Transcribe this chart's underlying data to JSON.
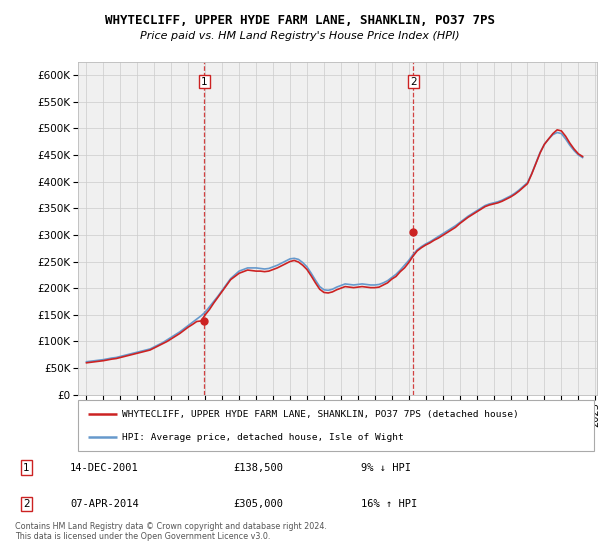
{
  "title": "WHYTECLIFF, UPPER HYDE FARM LANE, SHANKLIN, PO37 7PS",
  "subtitle": "Price paid vs. HM Land Registry's House Price Index (HPI)",
  "legend_line1": "WHYTECLIFF, UPPER HYDE FARM LANE, SHANKLIN, PO37 7PS (detached house)",
  "legend_line2": "HPI: Average price, detached house, Isle of Wight",
  "annotation1_label": "1",
  "annotation1_date": "14-DEC-2001",
  "annotation1_price": "£138,500",
  "annotation1_hpi": "9% ↓ HPI",
  "annotation2_label": "2",
  "annotation2_date": "07-APR-2014",
  "annotation2_price": "£305,000",
  "annotation2_hpi": "16% ↑ HPI",
  "footer": "Contains HM Land Registry data © Crown copyright and database right 2024.\nThis data is licensed under the Open Government Licence v3.0.",
  "hpi_color": "#6699cc",
  "property_color": "#cc2222",
  "vline_color": "#cc2222",
  "dot_color": "#cc2222",
  "ylim_min": 0,
  "ylim_max": 625000,
  "yticks": [
    0,
    50000,
    100000,
    150000,
    200000,
    250000,
    300000,
    350000,
    400000,
    450000,
    500000,
    550000,
    600000
  ],
  "anno1_x": 2001.95,
  "anno1_y": 138500,
  "anno2_x": 2014.27,
  "anno2_y": 305000,
  "hpi_years": [
    1995,
    1995.25,
    1995.5,
    1995.75,
    1996,
    1996.25,
    1996.5,
    1996.75,
    1997,
    1997.25,
    1997.5,
    1997.75,
    1998,
    1998.25,
    1998.5,
    1998.75,
    1999,
    1999.25,
    1999.5,
    1999.75,
    2000,
    2000.25,
    2000.5,
    2000.75,
    2001,
    2001.25,
    2001.5,
    2001.75,
    2002,
    2002.25,
    2002.5,
    2002.75,
    2003,
    2003.25,
    2003.5,
    2003.75,
    2004,
    2004.25,
    2004.5,
    2004.75,
    2005,
    2005.25,
    2005.5,
    2005.75,
    2006,
    2006.25,
    2006.5,
    2006.75,
    2007,
    2007.25,
    2007.5,
    2007.75,
    2008,
    2008.25,
    2008.5,
    2008.75,
    2009,
    2009.25,
    2009.5,
    2009.75,
    2010,
    2010.25,
    2010.5,
    2010.75,
    2011,
    2011.25,
    2011.5,
    2011.75,
    2012,
    2012.25,
    2012.5,
    2012.75,
    2013,
    2013.25,
    2013.5,
    2013.75,
    2014,
    2014.25,
    2014.5,
    2014.75,
    2015,
    2015.25,
    2015.5,
    2015.75,
    2016,
    2016.25,
    2016.5,
    2016.75,
    2017,
    2017.25,
    2017.5,
    2017.75,
    2018,
    2018.25,
    2018.5,
    2018.75,
    2019,
    2019.25,
    2019.5,
    2019.75,
    2020,
    2020.25,
    2020.5,
    2020.75,
    2021,
    2021.25,
    2021.5,
    2021.75,
    2022,
    2022.25,
    2022.5,
    2022.75,
    2023,
    2023.25,
    2023.5,
    2023.75,
    2024,
    2024.25
  ],
  "hpi_values": [
    62000,
    63000,
    64000,
    65000,
    66000,
    67500,
    69000,
    70000,
    72000,
    74000,
    76000,
    78000,
    80000,
    82000,
    84000,
    86000,
    90000,
    94000,
    98000,
    103000,
    108000,
    113000,
    118000,
    124000,
    130000,
    136000,
    142000,
    148000,
    155000,
    165000,
    175000,
    185000,
    196000,
    207000,
    218000,
    225000,
    232000,
    235000,
    238000,
    238000,
    238000,
    237000,
    236000,
    237000,
    240000,
    243000,
    247000,
    251000,
    255000,
    256000,
    254000,
    248000,
    240000,
    228000,
    215000,
    203000,
    197000,
    196000,
    198000,
    202000,
    205000,
    208000,
    207000,
    206000,
    207000,
    208000,
    207000,
    206000,
    206000,
    207000,
    210000,
    214000,
    220000,
    226000,
    234000,
    243000,
    252000,
    263000,
    272000,
    278000,
    283000,
    287000,
    292000,
    297000,
    302000,
    307000,
    312000,
    317000,
    323000,
    329000,
    335000,
    340000,
    345000,
    350000,
    355000,
    358000,
    360000,
    362000,
    365000,
    369000,
    373000,
    378000,
    384000,
    391000,
    398000,
    415000,
    435000,
    455000,
    470000,
    480000,
    488000,
    492000,
    490000,
    480000,
    468000,
    458000,
    450000,
    445000
  ],
  "prop_years": [
    1995,
    1995.25,
    1995.5,
    1995.75,
    1996,
    1996.25,
    1996.5,
    1996.75,
    1997,
    1997.25,
    1997.5,
    1997.75,
    1998,
    1998.25,
    1998.5,
    1998.75,
    1999,
    1999.25,
    1999.5,
    1999.75,
    2000,
    2000.25,
    2000.5,
    2000.75,
    2001,
    2001.25,
    2001.5,
    2001.75,
    2002,
    2002.25,
    2002.5,
    2002.75,
    2003,
    2003.25,
    2003.5,
    2003.75,
    2004,
    2004.25,
    2004.5,
    2004.75,
    2005,
    2005.25,
    2005.5,
    2005.75,
    2006,
    2006.25,
    2006.5,
    2006.75,
    2007,
    2007.25,
    2007.5,
    2007.75,
    2008,
    2008.25,
    2008.5,
    2008.75,
    2009,
    2009.25,
    2009.5,
    2009.75,
    2010,
    2010.25,
    2010.5,
    2010.75,
    2011,
    2011.25,
    2011.5,
    2011.75,
    2012,
    2012.25,
    2012.5,
    2012.75,
    2013,
    2013.25,
    2013.5,
    2013.75,
    2014,
    2014.25,
    2014.5,
    2014.75,
    2015,
    2015.25,
    2015.5,
    2015.75,
    2016,
    2016.25,
    2016.5,
    2016.75,
    2017,
    2017.25,
    2017.5,
    2017.75,
    2018,
    2018.25,
    2018.5,
    2018.75,
    2019,
    2019.25,
    2019.5,
    2019.75,
    2020,
    2020.25,
    2020.5,
    2020.75,
    2021,
    2021.25,
    2021.5,
    2021.75,
    2022,
    2022.25,
    2022.5,
    2022.75,
    2023,
    2023.25,
    2023.5,
    2023.75,
    2024,
    2024.25
  ],
  "prop_values": [
    60000,
    61000,
    62000,
    63000,
    64000,
    65500,
    67000,
    68000,
    70000,
    72000,
    74000,
    76000,
    78000,
    80000,
    82000,
    84000,
    88000,
    92000,
    96000,
    100000,
    105000,
    110000,
    115000,
    121000,
    127000,
    132000,
    137500,
    138500,
    150000,
    160000,
    172000,
    183000,
    194000,
    205000,
    216000,
    222000,
    228000,
    231000,
    234000,
    233000,
    232000,
    232000,
    231000,
    232000,
    235000,
    238000,
    242000,
    246000,
    250000,
    252000,
    249000,
    243000,
    235000,
    223000,
    210000,
    198000,
    192000,
    191000,
    193000,
    197000,
    200000,
    203000,
    202000,
    201000,
    202000,
    203000,
    202000,
    201000,
    201000,
    202000,
    206000,
    210000,
    217000,
    222000,
    231000,
    238000,
    248000,
    260000,
    270000,
    276000,
    281000,
    285000,
    290000,
    294000,
    299000,
    304000,
    309000,
    314000,
    321000,
    327000,
    333000,
    338000,
    343000,
    348000,
    353000,
    356000,
    358000,
    360000,
    363000,
    367000,
    371000,
    376000,
    382000,
    389000,
    396000,
    414000,
    434000,
    454000,
    470000,
    480000,
    490000,
    497000,
    495000,
    485000,
    472000,
    461000,
    452000,
    447000
  ],
  "xlim_min": 1994.5,
  "xlim_max": 2025.1,
  "xticks": [
    1995,
    1996,
    1997,
    1998,
    1999,
    2000,
    2001,
    2002,
    2003,
    2004,
    2005,
    2006,
    2007,
    2008,
    2009,
    2010,
    2011,
    2012,
    2013,
    2014,
    2015,
    2016,
    2017,
    2018,
    2019,
    2020,
    2021,
    2022,
    2023,
    2024,
    2025
  ],
  "bg_color": "#f0f0f0"
}
